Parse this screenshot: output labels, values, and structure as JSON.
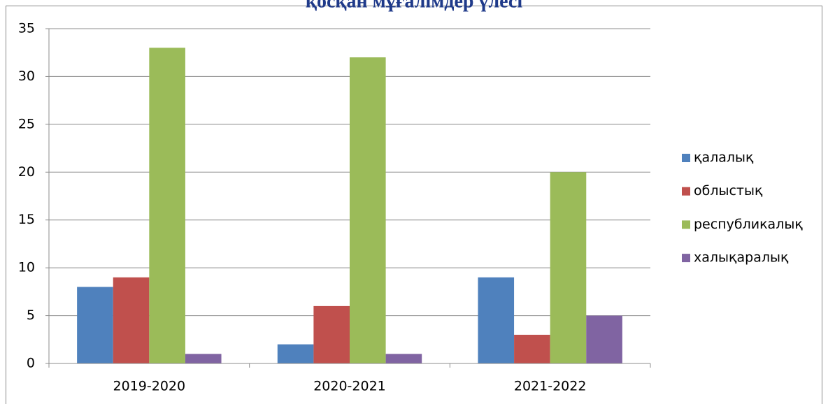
{
  "chart_data": {
    "type": "bar",
    "title": "қосқан мұғалімдер үлесі",
    "categories": [
      "2019-2020",
      "2020-2021",
      "2021-2022"
    ],
    "series": [
      {
        "name": "қалалық",
        "color": "#4f81bd",
        "values": [
          8,
          2,
          9
        ]
      },
      {
        "name": "облыстық",
        "color": "#c0504d",
        "values": [
          9,
          6,
          3
        ]
      },
      {
        "name": "республикалық",
        "color": "#9bbb59",
        "values": [
          33,
          32,
          20
        ]
      },
      {
        "name": "халықаралық",
        "color": "#8064a2",
        "values": [
          1,
          1,
          5
        ]
      }
    ],
    "ylim": [
      0,
      35
    ],
    "yticks": [
      0,
      5,
      10,
      15,
      20,
      25,
      30,
      35
    ],
    "grid": true,
    "legend": "right"
  }
}
